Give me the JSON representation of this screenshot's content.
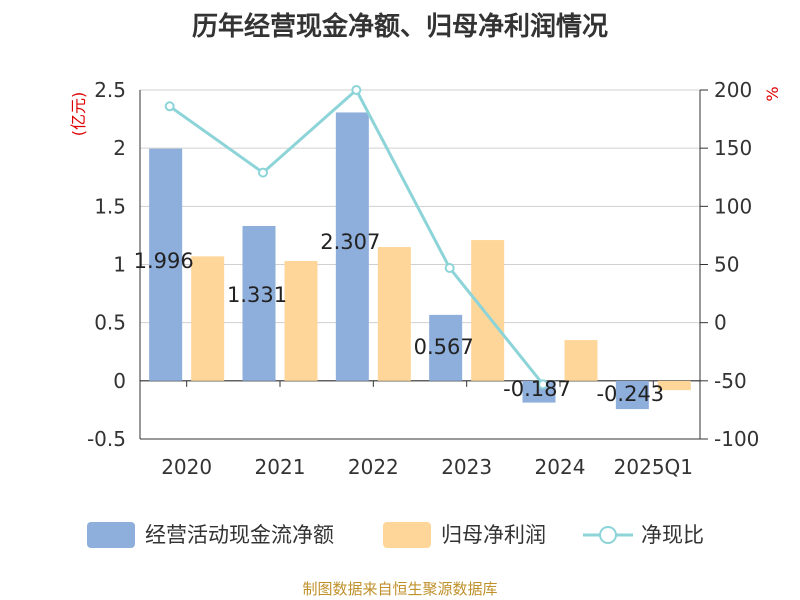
{
  "chart_data": {
    "type": "bar",
    "title": "历年经营现金净额、归母净利润情况",
    "categories": [
      "2020",
      "2021",
      "2022",
      "2023",
      "2024",
      "2025Q1"
    ],
    "y_left_label": "(亿元)",
    "y_right_label": "%",
    "y_left_range": [
      -0.5,
      2.5
    ],
    "y_right_range": [
      -100,
      200
    ],
    "y_left_ticks": [
      "-0.5",
      "0",
      "0.5",
      "1",
      "1.5",
      "2",
      "2.5"
    ],
    "y_right_ticks": [
      "-100",
      "-50",
      "0",
      "50",
      "100",
      "150",
      "200"
    ],
    "grid": true,
    "legend_position": "bottom",
    "series": [
      {
        "name": "经营活动现金流净额",
        "kind": "bar",
        "axis": "left",
        "color": "#8eaedb",
        "values": [
          1.996,
          1.331,
          2.307,
          0.567,
          -0.187,
          -0.243
        ],
        "labels": [
          "1.996",
          "1.331",
          "2.307",
          "0.567",
          "-0.187",
          "-0.243"
        ]
      },
      {
        "name": "归母净利润",
        "kind": "bar",
        "axis": "left",
        "color": "#ffd699",
        "values": [
          1.07,
          1.03,
          1.15,
          1.21,
          0.35,
          -0.08
        ]
      },
      {
        "name": "净现比",
        "kind": "line",
        "axis": "right",
        "color": "#8dd4d8",
        "values": [
          186,
          129,
          200,
          47,
          -53,
          null
        ]
      }
    ]
  },
  "source_note": "制图数据来自恒生聚源数据库",
  "colors": {
    "title": "#333333",
    "axis_text": "#333333",
    "axis_unit": "#dd0000",
    "grid": "#d0d0d0",
    "source": "#c0902a"
  }
}
